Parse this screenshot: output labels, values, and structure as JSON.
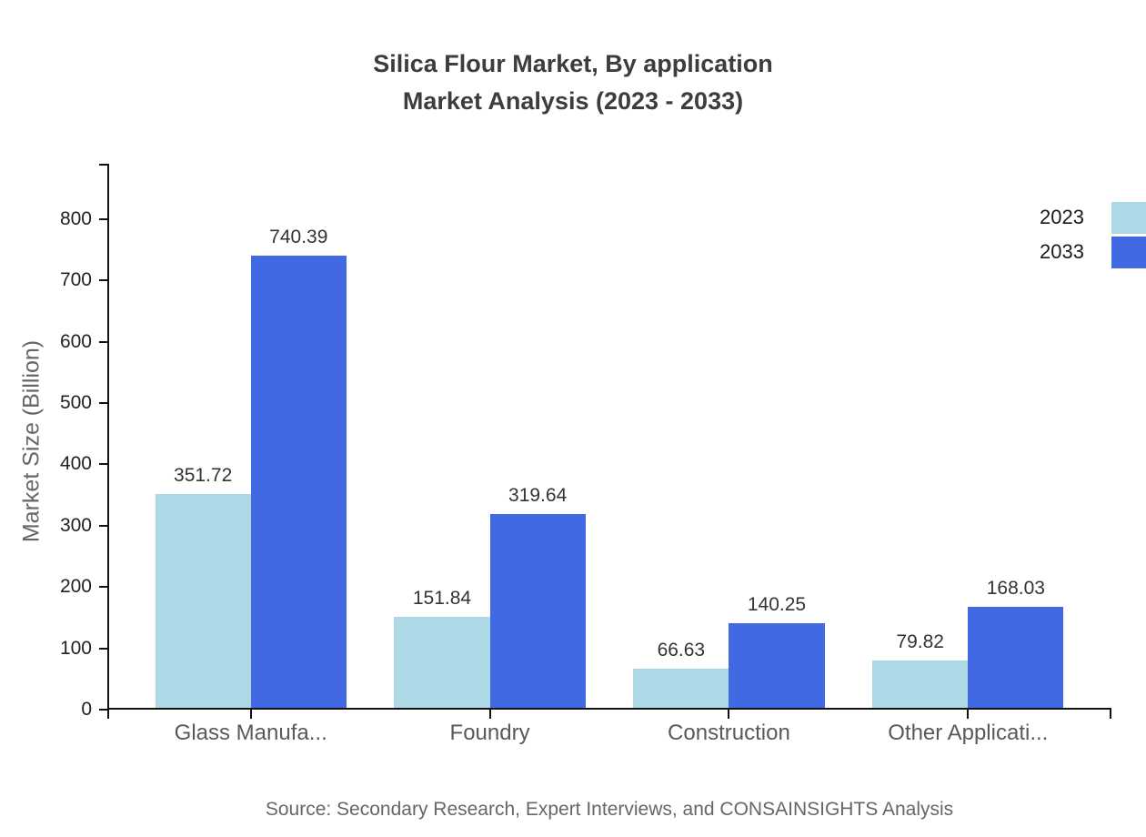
{
  "title": {
    "line1": "Silica Flour Market, By application",
    "line2": "Market Analysis (2023 - 2033)"
  },
  "source": "Source: Secondary Research, Expert Interviews, and CONSAINSIGHTS Analysis",
  "chart_data": {
    "type": "bar",
    "title": "Silica Flour Market, By application Market Analysis (2023 - 2033)",
    "categories": [
      "Glass Manufa...",
      "Foundry",
      "Construction",
      "Other Applicati..."
    ],
    "series": [
      {
        "name": "2023",
        "color": "#ADD8E6",
        "values": [
          351.72,
          151.84,
          66.63,
          79.82
        ]
      },
      {
        "name": "2033",
        "color": "#4169E1",
        "values": [
          740.39,
          319.64,
          140.25,
          168.03
        ]
      }
    ],
    "xlabel": "",
    "ylabel": "Market Size (Billion)",
    "yticks": [
      0,
      100,
      200,
      300,
      400,
      500,
      600,
      700,
      800
    ],
    "ylim": [
      0,
      890
    ],
    "grid": false,
    "legend_position": "top-right",
    "value_labels": true,
    "value_label_decimals": 2
  }
}
